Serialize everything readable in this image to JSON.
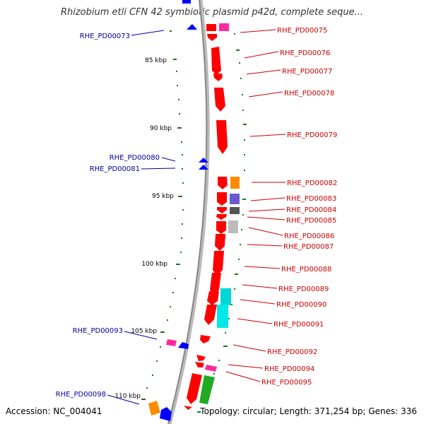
{
  "title": "Rhizobium etli CFN 42 symbiotic plasmid p42d, complete seque...",
  "footer": {
    "accession": "Accession: NC_004041",
    "summary": "Topology: circular; Length: 371,254 bp; Genes: 336"
  },
  "colors": {
    "forward": "#ff0000",
    "reverse": "#0000ff",
    "label_forward": "#cc0000",
    "label_reverse": "#000099",
    "tick": "#1a7a1a",
    "backbone": "#999999"
  },
  "ticks": [
    "85 kbp",
    "90 kbp",
    "95 kbp",
    "100 kbp",
    "105 kbp",
    "110 kbp"
  ],
  "labels_right": [
    "RHE_PD00075",
    "RHE_PD00076",
    "RHE_PD00077",
    "RHE_PD00078",
    "RHE_PD00079",
    "RHE_PD00082",
    "RHE_PD00083",
    "RHE_PD00084",
    "RHE_PD00085",
    "RHE_PD00086",
    "RHE_PD00087",
    "RHE_PD00088",
    "RHE_PD00089",
    "RHE_PD00090",
    "RHE_PD00091",
    "RHE_PD00092",
    "RHE_PD00094",
    "RHE_PD00095"
  ],
  "labels_left": [
    "RHE_PD00073",
    "RHE_PD00080",
    "RHE_PD00081",
    "RHE_PD00093",
    "RHE_PD00098"
  ]
}
